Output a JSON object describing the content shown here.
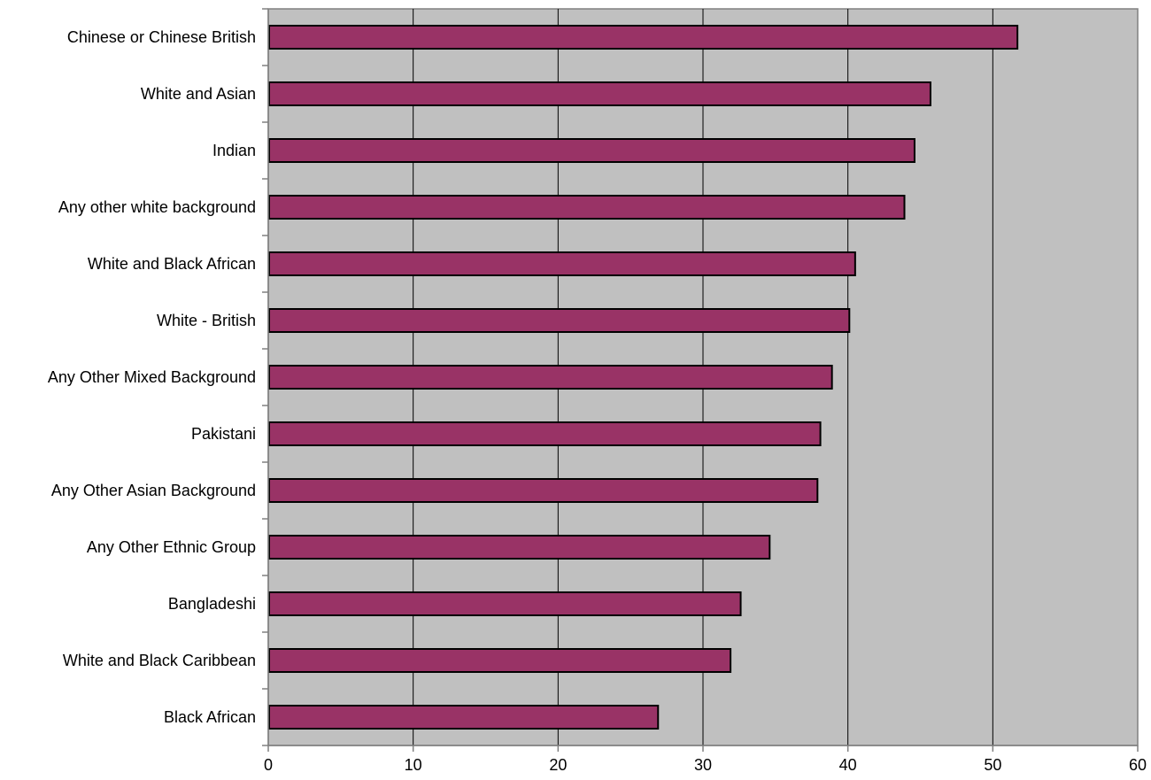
{
  "colors": {
    "plot_background": "#c0c0c0",
    "bar_fill": "#993366",
    "bar_stroke": "#000000",
    "gridline": "#000000",
    "axis": "#808080",
    "text": "#000000"
  },
  "chart_data": {
    "type": "bar",
    "orientation": "horizontal",
    "title": "",
    "xlabel": "",
    "ylabel": "",
    "categories": [
      "Chinese or Chinese British",
      "White and Asian",
      "Indian",
      "Any other white background",
      "White and Black African",
      "White - British",
      "Any Other Mixed Background",
      "Pakistani",
      "Any Other Asian Background",
      "Any Other Ethnic Group",
      "Bangladeshi",
      "White and Black Caribbean",
      "Black African"
    ],
    "values": [
      51.7,
      45.7,
      44.6,
      43.9,
      40.5,
      40.1,
      38.9,
      38.1,
      37.9,
      34.6,
      32.6,
      31.9,
      26.9
    ],
    "xlim": [
      0,
      60
    ],
    "x_ticks": [
      "0",
      "10",
      "20",
      "30",
      "40",
      "50",
      "60"
    ],
    "grid": "vertical major gridlines",
    "legend": "none"
  }
}
